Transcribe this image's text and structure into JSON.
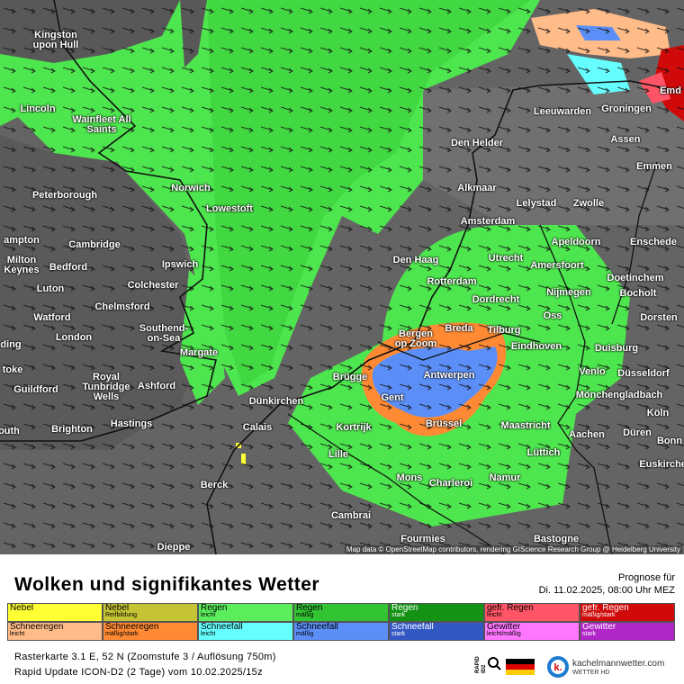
{
  "header": {
    "title": "Wolken und signifikantes Wetter",
    "forecast_label": "Prognose für",
    "forecast_time": "Di. 11.02.2025, 08:00 Uhr MEZ"
  },
  "map": {
    "attribution": "Map data © OpenStreetMap contributors, rendering GIScience Research Group @ Heidelberg University",
    "cities": [
      "Kingston upon Hull",
      "Lincoln",
      "Wainfleet All Saints",
      "Peterborough",
      "Norwich",
      "Lowestoft",
      "Cambridge",
      "Ipswich",
      "Bedford",
      "Milton Keynes",
      "Luton",
      "Colchester",
      "Chelmsford",
      "Watford",
      "Southend-on-Sea",
      "London",
      "Margate",
      "Royal Tunbridge Wells",
      "Ashford",
      "Guildford",
      "Hastings",
      "Brighton",
      "Dünkirchen",
      "Calais",
      "Brügge",
      "Gent",
      "Antwerpen",
      "Kortrijk",
      "Brüssel",
      "Lille",
      "Berck",
      "Mons",
      "Charleroi",
      "Namur",
      "Cambrai",
      "Fourmies",
      "Bastogne",
      "Maastricht",
      "Lüttich",
      "Aachen",
      "Düren",
      "Köln",
      "Bonn",
      "Euskirchen",
      "Mönchengladbach",
      "Düsseldorf",
      "Venlo",
      "Duisburg",
      "Dorsten",
      "Bocholt",
      "Doetinchem",
      "Nijmegen",
      "Oss",
      "Eindhoven",
      "Tilburg",
      "Breda",
      "Bergen op Zoom",
      "Dordrecht",
      "Rotterdam",
      "Den Haag",
      "Utrecht",
      "Amersfoort",
      "Amsterdam",
      "Apeldoorn",
      "Enschede",
      "Alkmaar",
      "Lelystad",
      "Zwolle",
      "Den Helder",
      "Leeuwarden",
      "Groningen",
      "Assen",
      "Emmen",
      "Dieppe",
      "ampton",
      "ding",
      "toke",
      "outh",
      "Emd"
    ]
  },
  "legend": [
    {
      "label": "Nebel",
      "color": "#ffff33"
    },
    {
      "label": "Nebel",
      "sublabel": "Reifbildung",
      "color": "#c4c434"
    },
    {
      "label": "Regen",
      "sublabel": "leicht",
      "color": "#5ced5c"
    },
    {
      "label": "Regen",
      "sublabel": "mäßig",
      "color": "#33c433"
    },
    {
      "label": "Regen",
      "sublabel": "stark",
      "color": "#139213"
    },
    {
      "label": "gefr. Regen",
      "sublabel": "leicht",
      "color": "#ff5566"
    },
    {
      "label": "gefr. Regen",
      "sublabel": "mäßig/stark",
      "color": "#d00a0a"
    },
    {
      "label": "Schneeregen",
      "sublabel": "leicht",
      "color": "#ffbb88"
    },
    {
      "label": "Schneeregen",
      "sublabel": "mäßig/stark",
      "color": "#ff8a33"
    },
    {
      "label": "Schneefall",
      "sublabel": "leicht",
      "color": "#66ffff"
    },
    {
      "label": "Schneefall",
      "sublabel": "mäßig",
      "color": "#5b8ff7"
    },
    {
      "label": "Schneefall",
      "sublabel": "stark",
      "color": "#3358c4"
    },
    {
      "label": "Gewitter",
      "sublabel": "leicht/mäßig",
      "color": "#ff77ff"
    },
    {
      "label": "Gewitter",
      "sublabel": "stark",
      "color": "#b026c8"
    }
  ],
  "footer": {
    "line1": "Rasterkarte 3.1 E, 52 N (Zoomstufe 3 / Auflösung 750m)",
    "line2": "Rapid Update ICON-D2 (2 Tage) vom 10.02.2025/15z"
  },
  "logo": {
    "badge": "RAPID ID2",
    "site": "kachelmannwetter.com",
    "tag": "WETTER HD"
  }
}
